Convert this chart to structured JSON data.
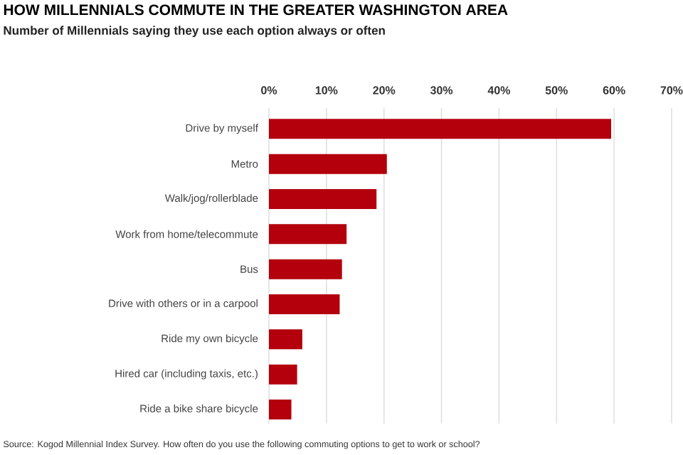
{
  "chart_data": {
    "type": "bar",
    "orientation": "horizontal",
    "title": "HOW MILLENNIALS COMMUTE IN THE GREATER WASHINGTON AREA",
    "subtitle": "Number of Millennials saying they use each option always or often",
    "categories": [
      "Drive by myself",
      "Metro",
      "Walk/jog/rollerblade",
      "Work from home/telecommute",
      "Bus",
      "Drive with others or in a carpool",
      "Ride my own bicycle",
      "Hired car (including taxis, etc.)",
      "Ride a bike share bicycle"
    ],
    "values": [
      59.5,
      20.5,
      18.7,
      13.5,
      12.7,
      12.3,
      5.8,
      4.9,
      3.9
    ],
    "color": "#b3000c",
    "xlim": [
      0,
      70
    ],
    "xticks": [
      {
        "value": 0,
        "label": "0%"
      },
      {
        "value": 10,
        "label": "10%"
      },
      {
        "value": 20,
        "label": "20%"
      },
      {
        "value": 30,
        "label": "30%"
      },
      {
        "value": 40,
        "label": "40%"
      },
      {
        "value": 50,
        "label": "50%"
      },
      {
        "value": 60,
        "label": "60%"
      },
      {
        "value": 70,
        "label": "70%"
      }
    ],
    "grid": "x",
    "annotations": [
      "Source: Kogod Millennial Index Survey. How often do you use the following commuting options to get to work or school?"
    ]
  }
}
